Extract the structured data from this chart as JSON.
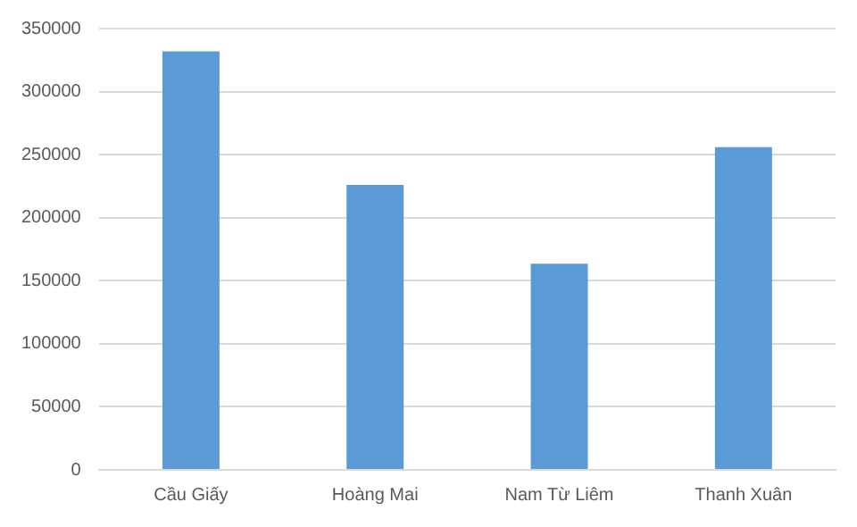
{
  "chart_data": {
    "type": "bar",
    "categories": [
      "Cầu Giấy",
      "Hoàng Mai",
      "Nam Từ Liêm",
      "Thanh Xuân"
    ],
    "values": [
      332000,
      226000,
      163500,
      256000
    ],
    "color": "#5b9bd5",
    "ylim": [
      0,
      350000
    ],
    "yticks": [
      0,
      50000,
      100000,
      150000,
      200000,
      250000,
      300000,
      350000
    ],
    "grid": "y",
    "legend": false
  }
}
